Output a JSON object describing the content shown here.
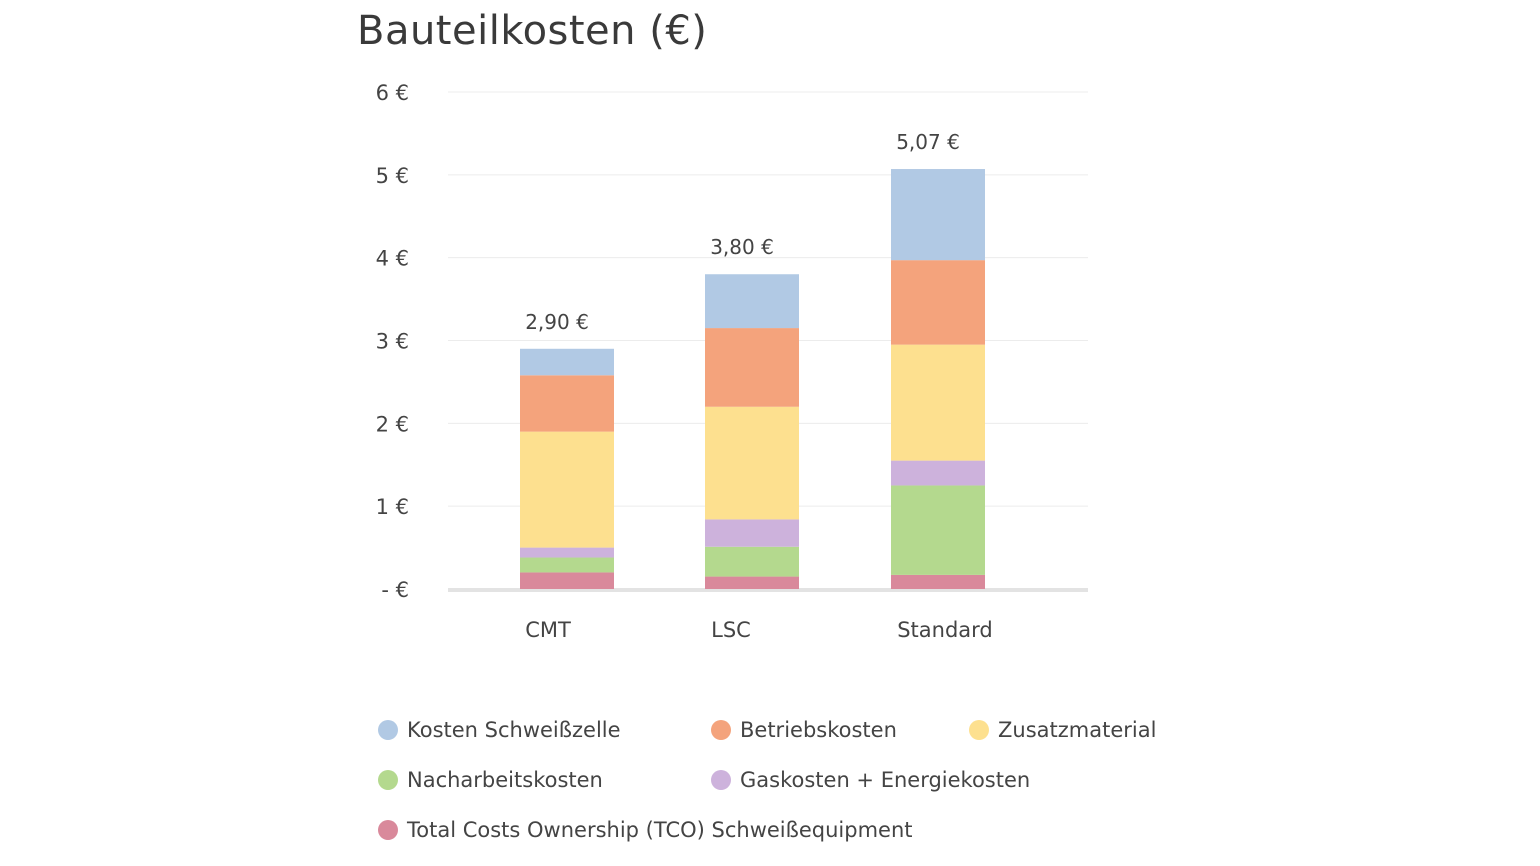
{
  "chart_data": {
    "type": "bar",
    "stacked": true,
    "title": "Bauteilkosten (€)",
    "categories": [
      "CMT",
      "LSC",
      "Standard"
    ],
    "yticks": [
      "- €",
      "1 €",
      "2 €",
      "3 €",
      "4 €",
      "5 €",
      "6 €"
    ],
    "ylim": [
      0,
      6
    ],
    "grid": true,
    "legend_position": "bottom",
    "series": [
      {
        "name": "Total Costs Ownership (TCO) Schweißequipment",
        "color": "#d9899b",
        "values": [
          0.2,
          0.15,
          0.17
        ]
      },
      {
        "name": "Nacharbeitskosten",
        "color": "#b4d98e",
        "values": [
          0.18,
          0.36,
          1.08
        ]
      },
      {
        "name": "Gaskosten + Energiekosten",
        "color": "#cdb2dc",
        "values": [
          0.12,
          0.33,
          0.3
        ]
      },
      {
        "name": "Zusatzmaterial",
        "color": "#fde08f",
        "values": [
          1.4,
          1.36,
          1.4
        ]
      },
      {
        "name": "Betriebskosten",
        "color": "#f4a37c",
        "values": [
          0.68,
          0.95,
          1.02
        ]
      },
      {
        "name": "Kosten Schweißzelle",
        "color": "#b1c9e4",
        "values": [
          0.32,
          0.65,
          1.1
        ]
      }
    ],
    "totals": [
      "2,90 €",
      "3,80 €",
      "5,07 €"
    ],
    "legend_order": [
      "Kosten Schweißzelle",
      "Betriebskosten",
      "Zusatzmaterial",
      "Nacharbeitskosten",
      "Gaskosten + Energiekosten",
      "Total Costs Ownership (TCO) Schweißequipment"
    ]
  }
}
